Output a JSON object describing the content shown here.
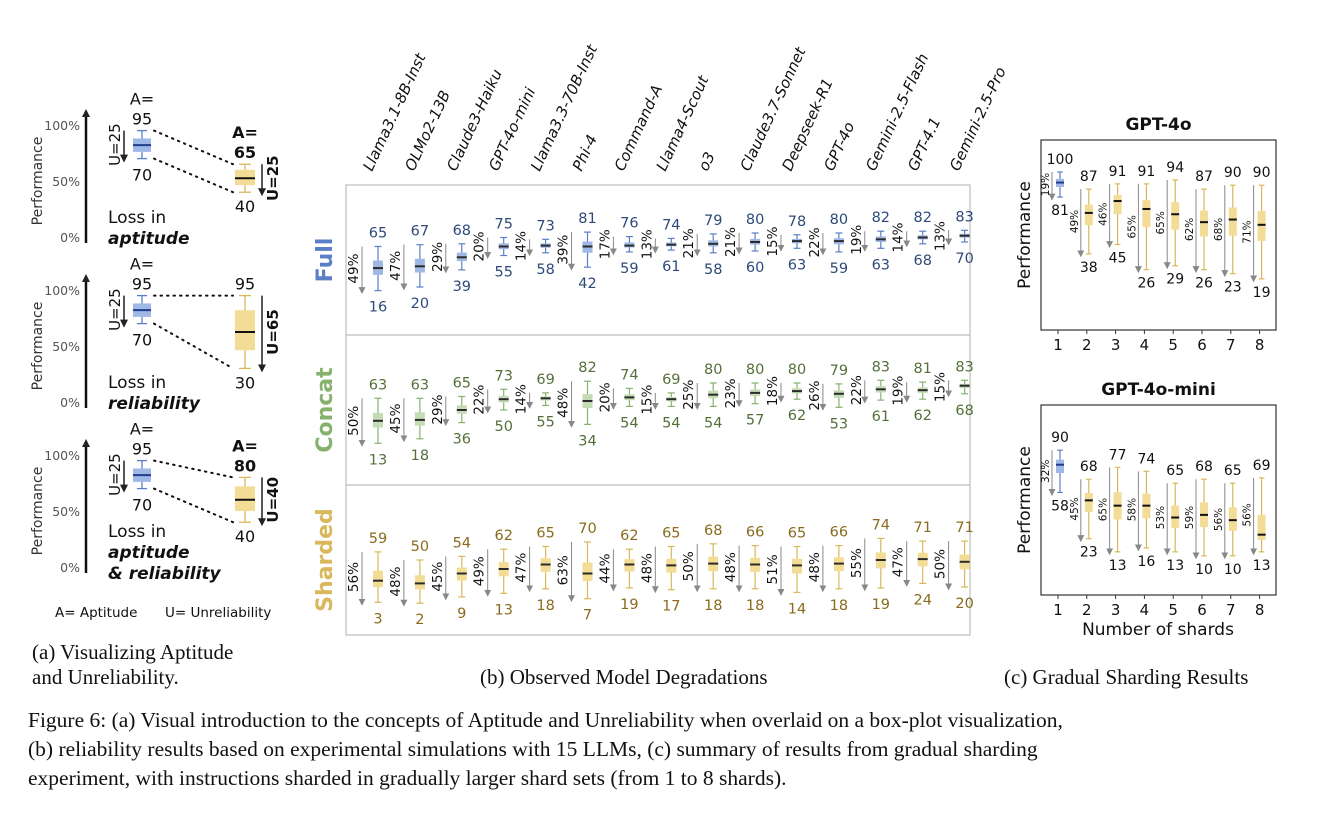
{
  "panel_a": {
    "axis_ylabel": "Performance",
    "ticks": [
      "100%",
      "50%",
      "0%"
    ],
    "blue_box": {
      "a_top": "A=",
      "a_val": "95",
      "low": "70",
      "u": "U=25"
    },
    "rows": [
      {
        "right_a": "A=",
        "right_top": "65",
        "right_low": "40",
        "right_u": "U=25",
        "loss_1": "Loss in",
        "loss_2": "aptitude",
        "loss_3": ""
      },
      {
        "right_a": "",
        "right_top": "95",
        "right_low": "30",
        "right_u": "U=65",
        "loss_1": "Loss in",
        "loss_2": "reliability",
        "loss_3": ""
      },
      {
        "right_a": "A=",
        "right_top": "80",
        "right_low": "40",
        "right_u": "U=40",
        "loss_1": "Loss in",
        "loss_2": "aptitude",
        "loss_3": "& reliability"
      }
    ],
    "legend_a": "A= Aptitude",
    "legend_u": "U= Unreliability",
    "caption_line1": "(a)  Visualizing  Aptitude",
    "caption_line2": "and Unreliability."
  },
  "chart_data": [
    {
      "type": "boxplot",
      "title": "Observed Model Degradations",
      "models": [
        "Llama3.1-8B-Inst",
        "OLMo2-13B",
        "Claude3-Haiku",
        "GPT-4o-mini",
        "Llama3.3-70B-Inst",
        "Phi-4",
        "Command-A",
        "Llama4-Scout",
        "o3",
        "Claude3.7-Sonnet",
        "Deepseek-R1",
        "GPT-4o",
        "Gemini-2.5-Flash",
        "GPT-4.1",
        "Gemini-2.5-Pro"
      ],
      "ylim": [
        0,
        100
      ],
      "series": [
        {
          "name": "Full",
          "color": "#5b7fc7",
          "hi": [
            65,
            67,
            68,
            75,
            73,
            81,
            76,
            74,
            79,
            80,
            78,
            80,
            82,
            82,
            83
          ],
          "lo": [
            16,
            20,
            39,
            55,
            58,
            42,
            59,
            61,
            58,
            60,
            63,
            59,
            63,
            68,
            70
          ],
          "unrel": [
            "49%",
            "47%",
            "29%",
            "20%",
            "14%",
            "39%",
            "17%",
            "13%",
            "21%",
            "21%",
            "15%",
            "22%",
            "19%",
            "14%",
            "13%"
          ],
          "unrel_value": [
            49,
            47,
            29,
            20,
            14,
            39,
            17,
            13,
            21,
            21,
            15,
            22,
            19,
            14,
            13
          ],
          "median": [
            41,
            43,
            53,
            65,
            66,
            65,
            66,
            67,
            68,
            70,
            71,
            71,
            73,
            75,
            77
          ]
        },
        {
          "name": "Concat",
          "color": "#86b26e",
          "hi": [
            63,
            63,
            65,
            73,
            69,
            82,
            74,
            69,
            80,
            80,
            80,
            79,
            83,
            81,
            83
          ],
          "lo": [
            13,
            18,
            36,
            50,
            55,
            34,
            54,
            54,
            54,
            57,
            62,
            53,
            61,
            62,
            68
          ],
          "unrel": [
            "50%",
            "45%",
            "29%",
            "22%",
            "14%",
            "48%",
            "20%",
            "15%",
            "25%",
            "23%",
            "18%",
            "26%",
            "22%",
            "19%",
            "15%"
          ],
          "unrel_value": [
            50,
            45,
            29,
            22,
            14,
            48,
            20,
            15,
            25,
            23,
            18,
            26,
            22,
            19,
            15
          ],
          "median": [
            38,
            39,
            50,
            62,
            63,
            60,
            64,
            62,
            67,
            69,
            71,
            68,
            73,
            72,
            77
          ]
        },
        {
          "name": "Sharded",
          "color": "#d9b85b",
          "hi": [
            59,
            50,
            54,
            62,
            65,
            70,
            62,
            65,
            68,
            66,
            65,
            66,
            74,
            71,
            71
          ],
          "lo": [
            3,
            2,
            9,
            13,
            18,
            7,
            19,
            17,
            18,
            18,
            14,
            18,
            19,
            24,
            20
          ],
          "unrel": [
            "56%",
            "48%",
            "45%",
            "49%",
            "47%",
            "63%",
            "44%",
            "48%",
            "50%",
            "48%",
            "51%",
            "48%",
            "55%",
            "47%",
            "50%"
          ],
          "unrel_value": [
            56,
            48,
            45,
            49,
            47,
            63,
            44,
            48,
            50,
            48,
            51,
            48,
            55,
            47,
            50
          ],
          "median": [
            27,
            24,
            35,
            40,
            45,
            35,
            45,
            44,
            46,
            45,
            44,
            46,
            50,
            51,
            48
          ]
        }
      ],
      "caption": "(b) Observed Model Degradations"
    },
    {
      "type": "boxplot",
      "title": "GPT-4o",
      "xlabel": "Number of shards",
      "ylabel": "Performance",
      "x": [
        "1",
        "2",
        "3",
        "4",
        "5",
        "6",
        "7",
        "8"
      ],
      "hi": [
        100,
        87,
        91,
        91,
        94,
        87,
        90,
        90
      ],
      "lo": [
        81,
        38,
        45,
        26,
        29,
        26,
        23,
        19
      ],
      "unrel": [
        "19%",
        "49%",
        "46%",
        "65%",
        "65%",
        "62%",
        "68%",
        "71%"
      ],
      "unrel_value": [
        19,
        49,
        46,
        65,
        65,
        62,
        68,
        71
      ],
      "median": [
        92,
        69,
        78,
        72,
        68,
        62,
        64,
        60
      ]
    },
    {
      "type": "boxplot",
      "title": "GPT-4o-mini",
      "xlabel": "Number of shards",
      "ylabel": "Performance",
      "x": [
        "1",
        "2",
        "3",
        "4",
        "5",
        "6",
        "7",
        "8"
      ],
      "hi": [
        90,
        68,
        77,
        74,
        65,
        68,
        65,
        69
      ],
      "lo": [
        58,
        23,
        13,
        16,
        13,
        10,
        10,
        13
      ],
      "unrel": [
        "32%",
        "45%",
        "65%",
        "58%",
        "53%",
        "59%",
        "56%",
        "56%"
      ],
      "unrel_value": [
        32,
        45,
        65,
        58,
        53,
        59,
        56,
        56
      ],
      "median": [
        79,
        52,
        48,
        48,
        39,
        41,
        37,
        26
      ]
    }
  ],
  "panel_c": {
    "caption": "(c) Gradual Sharding Results"
  },
  "figure_caption": [
    "Figure 6: (a) Visual introduction to the concepts of Aptitude and Unreliability when overlaid on a box-plot visualization,",
    "(b) reliability results based on experimental simulations with 15 LLMs, (c) summary of results from gradual sharding",
    "experiment, with instructions sharded in gradually larger shard sets (from 1 to 8 shards)."
  ],
  "colors": {
    "blue": "#5b7fc7",
    "green": "#86b26e",
    "yellow": "#d9b85b",
    "blue_text": "#2e4a7a",
    "green_text": "#54703a",
    "yellow_text": "#8a6a1d",
    "box_blue": "#9fb8e6",
    "box_green": "#c4dcb4",
    "box_yellow": "#f3dd96"
  }
}
